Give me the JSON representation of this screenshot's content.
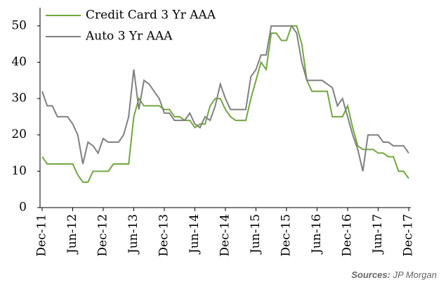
{
  "chart_data": {
    "type": "line",
    "categories": [
      "Dec-11",
      null,
      null,
      null,
      null,
      null,
      "Jun-12",
      null,
      null,
      null,
      null,
      null,
      "Dec-12",
      null,
      null,
      null,
      null,
      null,
      "Jun-13",
      null,
      null,
      null,
      null,
      null,
      "Dec-13",
      null,
      null,
      null,
      null,
      null,
      "Jun-14",
      null,
      null,
      null,
      null,
      null,
      "Dec-14",
      null,
      null,
      null,
      null,
      null,
      "Jun-15",
      null,
      null,
      null,
      null,
      null,
      "Dec-15",
      null,
      null,
      null,
      null,
      null,
      "Jun-16",
      null,
      null,
      null,
      null,
      null,
      "Dec-16",
      null,
      null,
      null,
      null,
      null,
      "Jun-17",
      null,
      null,
      null,
      null,
      null,
      "Dec-17"
    ],
    "series": [
      {
        "name": "Credit Card 3 Yr AAA",
        "color": "#70a83c",
        "values": [
          14,
          12,
          12,
          12,
          12,
          12,
          12,
          9,
          7,
          7,
          10,
          10,
          10,
          10,
          12,
          12,
          12,
          12,
          25,
          30,
          28,
          28,
          28,
          28,
          27,
          27,
          25,
          25,
          24,
          24,
          22,
          23,
          23,
          28,
          30,
          30,
          27,
          25,
          24,
          24,
          24,
          30,
          35,
          40,
          38,
          48,
          48,
          46,
          46,
          50,
          50,
          45,
          35,
          32,
          32,
          32,
          32,
          25,
          25,
          25,
          28,
          22,
          17,
          16,
          16,
          16,
          15,
          15,
          14,
          14,
          10,
          10,
          8
        ]
      },
      {
        "name": "Auto 3 Yr AAA",
        "color": "#808080",
        "values": [
          32,
          28,
          28,
          25,
          25,
          25,
          23,
          20,
          12,
          18,
          17,
          15,
          19,
          18,
          18,
          18,
          20,
          25,
          38,
          27,
          35,
          34,
          32,
          30,
          26,
          26,
          24,
          24,
          24,
          26,
          23,
          22,
          25,
          24,
          28,
          34,
          30,
          27,
          27,
          27,
          27,
          36,
          38,
          42,
          42,
          50,
          50,
          50,
          50,
          50,
          48,
          40,
          35,
          35,
          35,
          35,
          34,
          33,
          28,
          30,
          25,
          20,
          16,
          10,
          20,
          20,
          20,
          18,
          18,
          17,
          17,
          17,
          15
        ]
      }
    ],
    "ylim": [
      0,
      55
    ],
    "yticks": [
      0,
      10,
      20,
      30,
      40,
      50
    ],
    "grid": false,
    "legend": "top-left",
    "source_label": "Sources:",
    "source": "JP Morgan"
  }
}
